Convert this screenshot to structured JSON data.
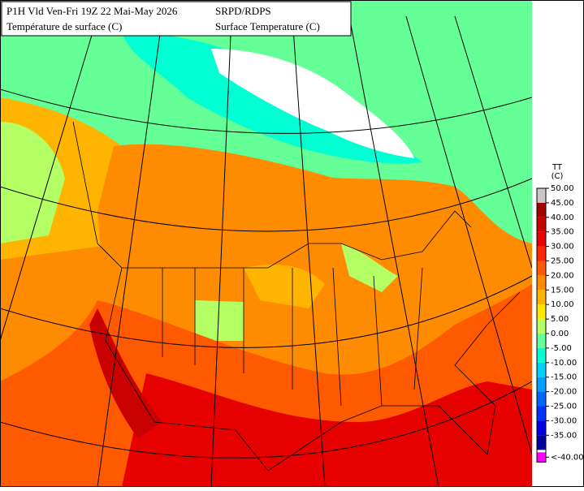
{
  "header": {
    "left_line1": "P1H Vld Ven-Fri 19Z 22 Mai-May 2026",
    "left_line2": "Température de surface (C)",
    "right_line1": "SRPD/RDPS",
    "right_line2": "Surface Temperature (C)"
  },
  "legend": {
    "title": "TT",
    "unit": "(C)",
    "items": [
      {
        "label": "50.00",
        "color": "#c8c8c8"
      },
      {
        "label": "45.00",
        "color": "#a00000"
      },
      {
        "label": "40.00",
        "color": "#c80000"
      },
      {
        "label": "35.00",
        "color": "#e60000"
      },
      {
        "label": "30.00",
        "color": "#ff2800"
      },
      {
        "label": "25.00",
        "color": "#ff5a00"
      },
      {
        "label": "20.00",
        "color": "#ff8c00"
      },
      {
        "label": "15.00",
        "color": "#ffb400"
      },
      {
        "label": "10.00",
        "color": "#ffe600"
      },
      {
        "label": "5.00",
        "color": "#b4ff64"
      },
      {
        "label": "0.00",
        "color": "#64ff96"
      },
      {
        "label": "-5.00",
        "color": "#00ffd2"
      },
      {
        "label": "-10.00",
        "color": "#00d2ff"
      },
      {
        "label": "-15.00",
        "color": "#00a0ff"
      },
      {
        "label": "-20.00",
        "color": "#0064ff"
      },
      {
        "label": "-25.00",
        "color": "#0032ff"
      },
      {
        "label": "-30.00",
        "color": "#0000e6"
      },
      {
        "label": "-35.00",
        "color": "#0000a0"
      },
      {
        "label": "<-40.00",
        "color": "#ff00ff"
      }
    ]
  }
}
